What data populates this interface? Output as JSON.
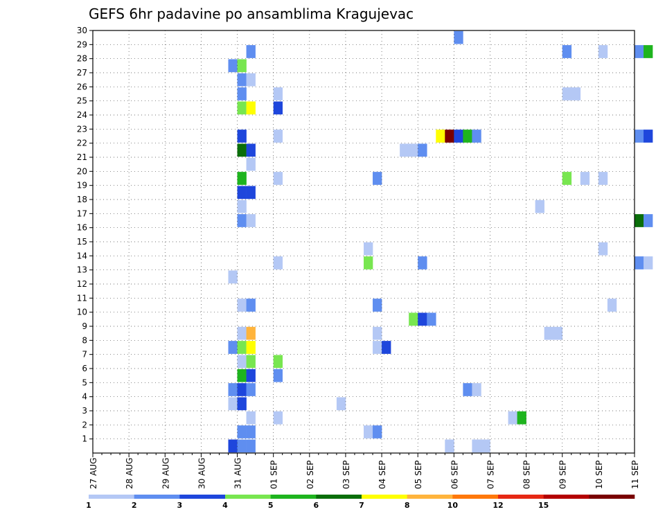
{
  "chart_data": {
    "type": "heatmap",
    "title": "GEFS 6hr padavine po ansamblima Kragujevac",
    "x_labels": [
      "27 AUG",
      "28 AUG",
      "29 AUG",
      "30 AUG",
      "31 AUG",
      "01 SEP",
      "02 SEP",
      "03 SEP",
      "04 SEP",
      "05 SEP",
      "06 SEP",
      "07 SEP",
      "08 SEP",
      "09 SEP",
      "10 SEP",
      "11 SEP"
    ],
    "y_ticks": [
      1,
      2,
      3,
      4,
      5,
      6,
      7,
      8,
      9,
      10,
      11,
      12,
      13,
      14,
      15,
      16,
      17,
      18,
      19,
      20,
      21,
      22,
      23,
      24,
      25,
      26,
      27,
      28,
      29,
      30
    ],
    "ylim": [
      0,
      30
    ],
    "grid": true,
    "levels": [
      1,
      2,
      3,
      4,
      5,
      6,
      7,
      8,
      10,
      12,
      15,
      20
    ],
    "colors": [
      "#b4c8f5",
      "#5f8ef0",
      "#1e46dc",
      "#78e650",
      "#1eb41e",
      "#0a6e0a",
      "#ffff00",
      "#ffb43c",
      "#ff780a",
      "#e62814",
      "#b40000",
      "#7a0000"
    ],
    "cells": [
      {
        "x": "2018-08-30 18:00",
        "m": 0,
        "v": 3
      },
      {
        "x": "2018-08-31 00:00",
        "m": 0,
        "v": 2
      },
      {
        "x": "2018-08-31 06:00",
        "m": 0,
        "v": 2
      },
      {
        "x": "2018-09-05 18:00",
        "m": 0,
        "v": 1
      },
      {
        "x": "2018-09-06 12:00",
        "m": 0,
        "v": 1
      },
      {
        "x": "2018-09-06 18:00",
        "m": 0,
        "v": 1
      },
      {
        "x": "2018-08-31 00:00",
        "m": 1,
        "v": 2
      },
      {
        "x": "2018-08-31 06:00",
        "m": 1,
        "v": 2
      },
      {
        "x": "2018-09-03 12:00",
        "m": 1,
        "v": 1
      },
      {
        "x": "2018-09-03 18:00",
        "m": 1,
        "v": 2
      },
      {
        "x": "2018-08-31 06:00",
        "m": 2,
        "v": 1
      },
      {
        "x": "2018-09-01 00:00",
        "m": 2,
        "v": 1
      },
      {
        "x": "2018-09-07 12:00",
        "m": 2,
        "v": 1
      },
      {
        "x": "2018-09-07 18:00",
        "m": 2,
        "v": 5
      },
      {
        "x": "2018-08-30 18:00",
        "m": 3,
        "v": 1
      },
      {
        "x": "2018-08-31 00:00",
        "m": 3,
        "v": 3
      },
      {
        "x": "2018-09-02 18:00",
        "m": 3,
        "v": 1
      },
      {
        "x": "2018-08-30 18:00",
        "m": 4,
        "v": 2
      },
      {
        "x": "2018-08-31 00:00",
        "m": 4,
        "v": 3
      },
      {
        "x": "2018-08-31 06:00",
        "m": 4,
        "v": 2
      },
      {
        "x": "2018-09-06 06:00",
        "m": 4,
        "v": 2
      },
      {
        "x": "2018-09-06 12:00",
        "m": 4,
        "v": 1
      },
      {
        "x": "2018-08-31 00:00",
        "m": 5,
        "v": 5
      },
      {
        "x": "2018-08-31 06:00",
        "m": 5,
        "v": 3
      },
      {
        "x": "2018-09-01 00:00",
        "m": 5,
        "v": 2
      },
      {
        "x": "2018-08-31 00:00",
        "m": 6,
        "v": 1
      },
      {
        "x": "2018-08-31 06:00",
        "m": 6,
        "v": 4
      },
      {
        "x": "2018-09-01 00:00",
        "m": 6,
        "v": 4
      },
      {
        "x": "2018-08-30 18:00",
        "m": 7,
        "v": 2
      },
      {
        "x": "2018-08-31 00:00",
        "m": 7,
        "v": 4
      },
      {
        "x": "2018-08-31 06:00",
        "m": 7,
        "v": 7
      },
      {
        "x": "2018-09-03 18:00",
        "m": 7,
        "v": 1
      },
      {
        "x": "2018-09-04 00:00",
        "m": 7,
        "v": 3
      },
      {
        "x": "2018-08-31 00:00",
        "m": 8,
        "v": 1
      },
      {
        "x": "2018-08-31 06:00",
        "m": 8,
        "v": 8
      },
      {
        "x": "2018-09-03 18:00",
        "m": 8,
        "v": 1
      },
      {
        "x": "2018-09-08 12:00",
        "m": 8,
        "v": 1
      },
      {
        "x": "2018-09-08 18:00",
        "m": 8,
        "v": 1
      },
      {
        "x": "2018-09-04 18:00",
        "m": 9,
        "v": 4
      },
      {
        "x": "2018-09-05 00:00",
        "m": 9,
        "v": 3
      },
      {
        "x": "2018-09-05 06:00",
        "m": 9,
        "v": 2
      },
      {
        "x": "2018-08-31 00:00",
        "m": 10,
        "v": 1
      },
      {
        "x": "2018-08-31 06:00",
        "m": 10,
        "v": 2
      },
      {
        "x": "2018-09-03 18:00",
        "m": 10,
        "v": 2
      },
      {
        "x": "2018-09-10 06:00",
        "m": 10,
        "v": 1
      },
      {
        "x": "2018-08-30 18:00",
        "m": 12,
        "v": 1
      },
      {
        "x": "2018-09-01 00:00",
        "m": 13,
        "v": 1
      },
      {
        "x": "2018-09-03 12:00",
        "m": 13,
        "v": 4
      },
      {
        "x": "2018-09-05 00:00",
        "m": 13,
        "v": 2
      },
      {
        "x": "2018-09-11 00:00",
        "m": 13,
        "v": 2
      },
      {
        "x": "2018-09-11 06:00",
        "m": 13,
        "v": 1
      },
      {
        "x": "2018-09-03 12:00",
        "m": 14,
        "v": 1
      },
      {
        "x": "2018-09-10 00:00",
        "m": 14,
        "v": 1
      },
      {
        "x": "2018-08-31 00:00",
        "m": 16,
        "v": 2
      },
      {
        "x": "2018-08-31 06:00",
        "m": 16,
        "v": 1
      },
      {
        "x": "2018-09-11 00:00",
        "m": 16,
        "v": 6
      },
      {
        "x": "2018-09-11 06:00",
        "m": 16,
        "v": 2
      },
      {
        "x": "2018-08-31 00:00",
        "m": 17,
        "v": 1
      },
      {
        "x": "2018-09-08 06:00",
        "m": 17,
        "v": 1
      },
      {
        "x": "2018-08-31 00:00",
        "m": 18,
        "v": 3
      },
      {
        "x": "2018-08-31 06:00",
        "m": 18,
        "v": 3
      },
      {
        "x": "2018-08-31 00:00",
        "m": 19,
        "v": 5
      },
      {
        "x": "2018-09-01 00:00",
        "m": 19,
        "v": 1
      },
      {
        "x": "2018-09-03 18:00",
        "m": 19,
        "v": 2
      },
      {
        "x": "2018-09-09 00:00",
        "m": 19,
        "v": 4
      },
      {
        "x": "2018-09-09 12:00",
        "m": 19,
        "v": 1
      },
      {
        "x": "2018-09-10 00:00",
        "m": 19,
        "v": 1
      },
      {
        "x": "2018-08-31 06:00",
        "m": 20,
        "v": 1
      },
      {
        "x": "2018-08-31 00:00",
        "m": 21,
        "v": 6
      },
      {
        "x": "2018-08-31 06:00",
        "m": 21,
        "v": 3
      },
      {
        "x": "2018-09-04 12:00",
        "m": 21,
        "v": 1
      },
      {
        "x": "2018-09-04 18:00",
        "m": 21,
        "v": 1
      },
      {
        "x": "2018-09-05 00:00",
        "m": 21,
        "v": 2
      },
      {
        "x": "2018-08-31 00:00",
        "m": 22,
        "v": 3
      },
      {
        "x": "2018-09-01 00:00",
        "m": 22,
        "v": 1
      },
      {
        "x": "2018-09-05 12:00",
        "m": 22,
        "v": 7
      },
      {
        "x": "2018-09-05 18:00",
        "m": 22,
        "v": 20
      },
      {
        "x": "2018-09-06 00:00",
        "m": 22,
        "v": 3
      },
      {
        "x": "2018-09-06 06:00",
        "m": 22,
        "v": 5
      },
      {
        "x": "2018-09-06 12:00",
        "m": 22,
        "v": 2
      },
      {
        "x": "2018-09-11 00:00",
        "m": 22,
        "v": 2
      },
      {
        "x": "2018-09-11 06:00",
        "m": 22,
        "v": 3
      },
      {
        "x": "2018-08-31 00:00",
        "m": 24,
        "v": 4
      },
      {
        "x": "2018-08-31 06:00",
        "m": 24,
        "v": 7
      },
      {
        "x": "2018-09-01 00:00",
        "m": 24,
        "v": 3
      },
      {
        "x": "2018-08-31 00:00",
        "m": 25,
        "v": 2
      },
      {
        "x": "2018-09-01 00:00",
        "m": 25,
        "v": 1
      },
      {
        "x": "2018-09-09 00:00",
        "m": 25,
        "v": 1
      },
      {
        "x": "2018-09-09 06:00",
        "m": 25,
        "v": 1
      },
      {
        "x": "2018-08-31 00:00",
        "m": 26,
        "v": 2
      },
      {
        "x": "2018-08-31 06:00",
        "m": 26,
        "v": 1
      },
      {
        "x": "2018-08-30 18:00",
        "m": 27,
        "v": 2
      },
      {
        "x": "2018-08-31 00:00",
        "m": 27,
        "v": 4
      },
      {
        "x": "2018-08-31 06:00",
        "m": 28,
        "v": 2
      },
      {
        "x": "2018-09-09 00:00",
        "m": 28,
        "v": 2
      },
      {
        "x": "2018-09-10 00:00",
        "m": 28,
        "v": 1
      },
      {
        "x": "2018-09-11 00:00",
        "m": 28,
        "v": 2
      },
      {
        "x": "2018-09-11 06:00",
        "m": 28,
        "v": 5
      },
      {
        "x": "2018-09-06 00:00",
        "m": 29,
        "v": 2
      }
    ]
  }
}
